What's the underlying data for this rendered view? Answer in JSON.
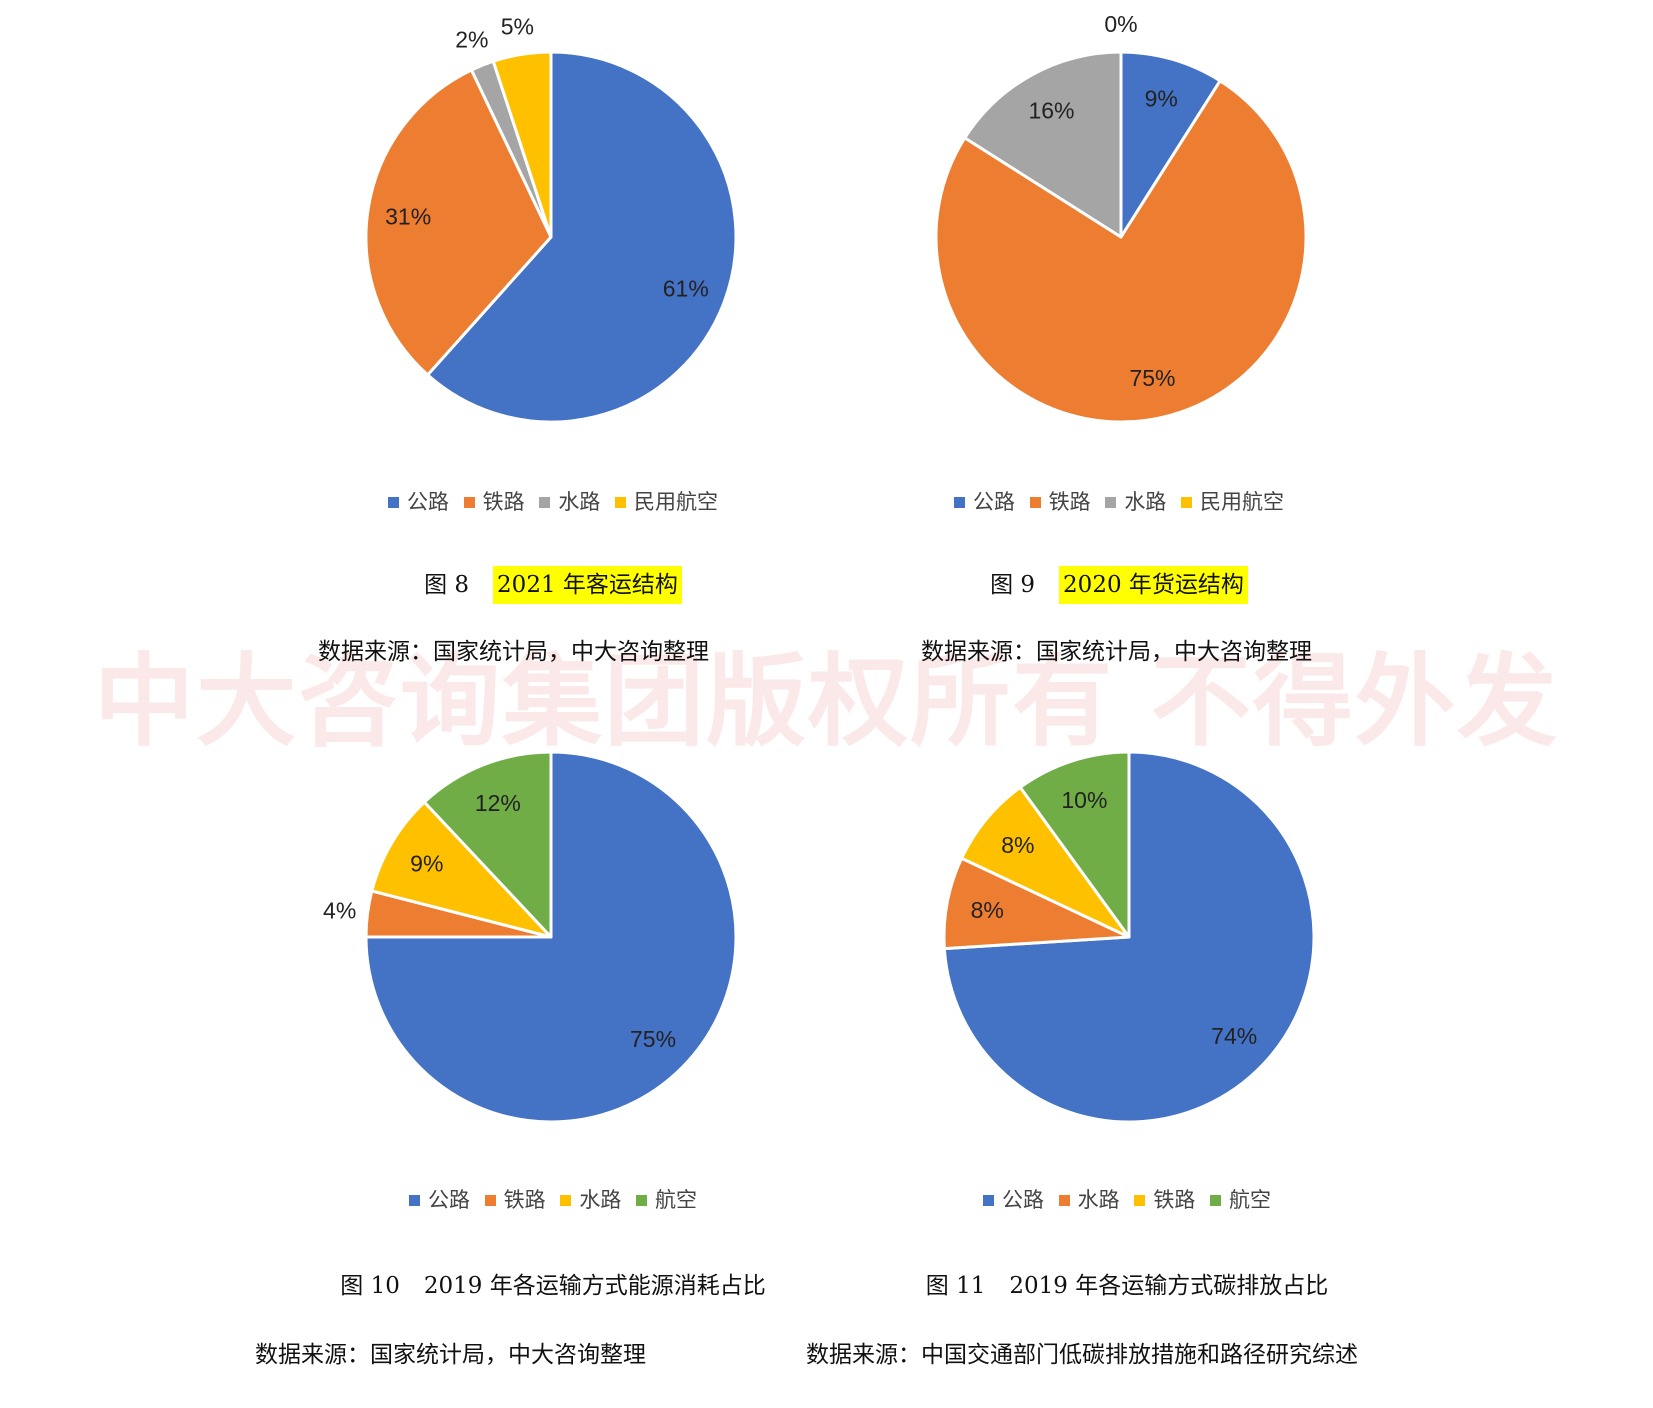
{
  "watermark": "中大咨询集团版权所有 不得外发",
  "charts": [
    {
      "figure_no": "图 8",
      "title": "2021 年客运结构",
      "highlight": true,
      "source": "数据来源：国家统计局，中大咨询整理",
      "legend": [
        {
          "label": "公路",
          "color": "#4472c4"
        },
        {
          "label": "铁路",
          "color": "#ed7d31"
        },
        {
          "label": "水路",
          "color": "#a5a5a5"
        },
        {
          "label": "民用航空",
          "color": "#ffc000"
        }
      ]
    },
    {
      "figure_no": "图 9",
      "title": "2020 年货运结构",
      "highlight": true,
      "source": "数据来源：国家统计局，中大咨询整理",
      "legend": [
        {
          "label": "公路",
          "color": "#4472c4"
        },
        {
          "label": "铁路",
          "color": "#ed7d31"
        },
        {
          "label": "水路",
          "color": "#a5a5a5"
        },
        {
          "label": "民用航空",
          "color": "#ffc000"
        }
      ]
    },
    {
      "figure_no": "图 10",
      "title": "2019 年各运输方式能源消耗占比",
      "highlight": false,
      "source": "数据来源：国家统计局，中大咨询整理",
      "legend": [
        {
          "label": "公路",
          "color": "#4472c4"
        },
        {
          "label": "铁路",
          "color": "#ed7d31"
        },
        {
          "label": "水路",
          "color": "#ffc000"
        },
        {
          "label": "航空",
          "color": "#70ad47"
        }
      ]
    },
    {
      "figure_no": "图 11",
      "title": "2019 年各运输方式碳排放占比",
      "highlight": false,
      "source": "数据来源：中国交通部门低碳排放措施和路径研究综述",
      "legend": [
        {
          "label": "公路",
          "color": "#4472c4"
        },
        {
          "label": "水路",
          "color": "#ed7d31"
        },
        {
          "label": "铁路",
          "color": "#ffc000"
        },
        {
          "label": "航空",
          "color": "#70ad47"
        }
      ]
    }
  ],
  "chart_data": [
    {
      "type": "pie",
      "title": "2021 年客运结构",
      "categories": [
        "公路",
        "铁路",
        "水路",
        "民用航空"
      ],
      "values": [
        61,
        31,
        2,
        5
      ],
      "labels": [
        "61%",
        "31%",
        "2%",
        "5%"
      ],
      "colors": [
        "#4472c4",
        "#ed7d31",
        "#a5a5a5",
        "#ffc000"
      ],
      "legend": "bottom"
    },
    {
      "type": "pie",
      "title": "2020 年货运结构",
      "categories": [
        "公路",
        "铁路",
        "水路",
        "民用航空"
      ],
      "values": [
        9,
        75,
        16,
        0
      ],
      "labels": [
        "9%",
        "75%",
        "16%",
        "0%"
      ],
      "colors": [
        "#4472c4",
        "#ed7d31",
        "#a5a5a5",
        "#ffc000"
      ],
      "legend": "bottom"
    },
    {
      "type": "pie",
      "title": "2019 年各运输方式能源消耗占比",
      "categories": [
        "公路",
        "铁路",
        "水路",
        "航空"
      ],
      "values": [
        75,
        4,
        9,
        12
      ],
      "labels": [
        "75%",
        "4%",
        "9%",
        "12%"
      ],
      "colors": [
        "#4472c4",
        "#ed7d31",
        "#ffc000",
        "#70ad47"
      ],
      "legend": "bottom"
    },
    {
      "type": "pie",
      "title": "2019 年各运输方式碳排放占比",
      "categories": [
        "公路",
        "水路",
        "铁路",
        "航空"
      ],
      "values": [
        74,
        8,
        8,
        10
      ],
      "labels": [
        "74%",
        "8%",
        "8%",
        "10%"
      ],
      "colors": [
        "#4472c4",
        "#ed7d31",
        "#ffc000",
        "#70ad47"
      ],
      "legend": "bottom"
    }
  ]
}
